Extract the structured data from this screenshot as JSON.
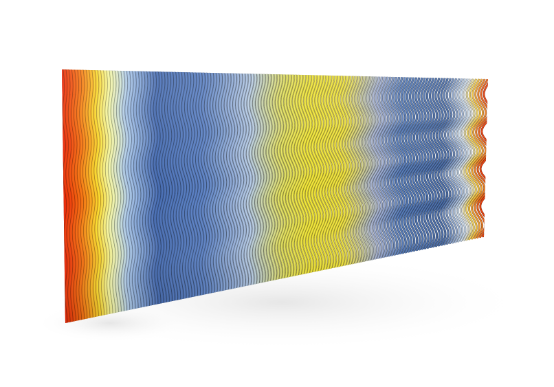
{
  "scene": {
    "subject": "wavy-fin-wall",
    "background_color": "#ffffff",
    "shadow_color": "#d9d9d9",
    "color_stops": [
      {
        "t": 0.0,
        "color": "#e02a0a"
      },
      {
        "t": 0.04,
        "color": "#ee6a12"
      },
      {
        "t": 0.08,
        "color": "#f3c52a"
      },
      {
        "t": 0.11,
        "color": "#ecef9a"
      },
      {
        "t": 0.15,
        "color": "#9fb9d9"
      },
      {
        "t": 0.22,
        "color": "#4466a5"
      },
      {
        "t": 0.33,
        "color": "#5779b5"
      },
      {
        "t": 0.44,
        "color": "#a6b9d3"
      },
      {
        "t": 0.52,
        "color": "#d2cf58"
      },
      {
        "t": 0.58,
        "color": "#e7d934"
      },
      {
        "t": 0.66,
        "color": "#e6d63a"
      },
      {
        "t": 0.74,
        "color": "#9aa6c4"
      },
      {
        "t": 0.8,
        "color": "#5073ad"
      },
      {
        "t": 0.9,
        "color": "#46679f"
      },
      {
        "t": 0.95,
        "color": "#c8d6e6"
      },
      {
        "t": 0.97,
        "color": "#f1c540"
      },
      {
        "t": 1.0,
        "color": "#e6400f"
      }
    ]
  }
}
